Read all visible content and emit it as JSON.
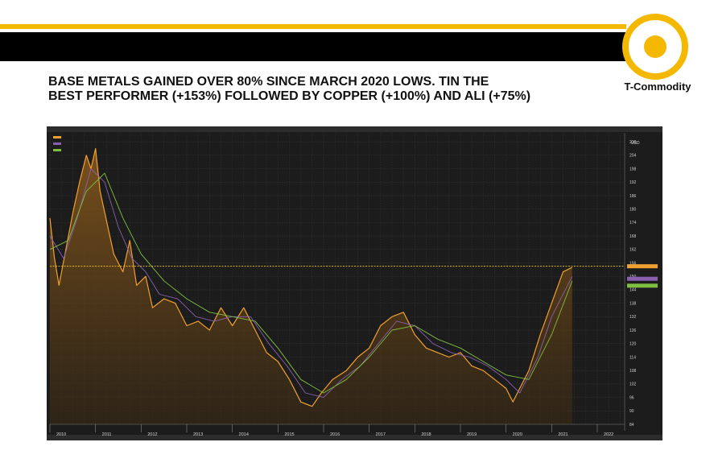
{
  "brand": {
    "name": "T-Commodity",
    "accent": "#f5b800",
    "bar_color": "#000000"
  },
  "slide": {
    "title_line1": "BASE METALS GAINED OVER 80% SINCE MARCH 2020 LOWS. TIN THE",
    "title_line2": "BEST PERFORMER (+153%) FOLLOWED BY COPPER (+100%) AND ALI (+75%)"
  },
  "chart_data": {
    "type": "area",
    "background": "#1c1c1c",
    "grid": true,
    "legend_position": "top-left",
    "currency_label": "USD",
    "x_ticks": [
      "2010",
      "2011",
      "2012",
      "2013",
      "2014",
      "2015",
      "2016",
      "2017",
      "2018",
      "2019",
      "2020",
      "2021",
      "2022"
    ],
    "x_range": [
      2010.0,
      2022.6
    ],
    "y_ticks": [
      84,
      90,
      96,
      102,
      108,
      114,
      120,
      126,
      132,
      138,
      144,
      150,
      156,
      162,
      168,
      174,
      180,
      186,
      192,
      198,
      204,
      210
    ],
    "ylim": [
      84,
      214
    ],
    "reference_level": 154.5,
    "series": [
      {
        "color": "#f0a030",
        "style": "area",
        "x": [
          2010.0,
          2010.1,
          2010.2,
          2010.35,
          2010.5,
          2010.65,
          2010.8,
          2010.9,
          2011.0,
          2011.1,
          2011.25,
          2011.4,
          2011.6,
          2011.75,
          2011.9,
          2012.1,
          2012.25,
          2012.5,
          2012.75,
          2013.0,
          2013.25,
          2013.5,
          2013.75,
          2014.0,
          2014.25,
          2014.5,
          2014.75,
          2015.0,
          2015.25,
          2015.5,
          2015.75,
          2015.95,
          2016.2,
          2016.5,
          2016.75,
          2017.0,
          2017.25,
          2017.5,
          2017.75,
          2018.0,
          2018.25,
          2018.5,
          2018.75,
          2019.0,
          2019.25,
          2019.5,
          2019.75,
          2020.0,
          2020.15,
          2020.25,
          2020.5,
          2020.75,
          2021.0,
          2021.25,
          2021.45
        ],
        "y": [
          176,
          158,
          146,
          162,
          178,
          192,
          204,
          198,
          207,
          188,
          174,
          160,
          152,
          166,
          146,
          150,
          136,
          140,
          138,
          128,
          130,
          126,
          136,
          128,
          136,
          126,
          116,
          112,
          104,
          94,
          92,
          98,
          104,
          108,
          114,
          118,
          128,
          132,
          134,
          124,
          118,
          116,
          114,
          116,
          110,
          108,
          104,
          100,
          94,
          98,
          108,
          124,
          138,
          152,
          154
        ]
      },
      {
        "color": "#8a5fb0",
        "style": "line",
        "x": [
          2010.0,
          2010.3,
          2010.6,
          2010.9,
          2011.2,
          2011.5,
          2011.8,
          2012.1,
          2012.4,
          2012.8,
          2013.2,
          2013.6,
          2014.0,
          2014.4,
          2014.8,
          2015.2,
          2015.6,
          2016.0,
          2016.4,
          2016.8,
          2017.2,
          2017.6,
          2018.0,
          2018.4,
          2018.8,
          2019.2,
          2019.6,
          2020.0,
          2020.3,
          2020.7,
          2021.0,
          2021.45
        ],
        "y": [
          168,
          158,
          176,
          198,
          192,
          172,
          158,
          152,
          142,
          140,
          132,
          130,
          132,
          132,
          120,
          110,
          98,
          96,
          104,
          110,
          120,
          130,
          128,
          120,
          116,
          114,
          110,
          104,
          98,
          114,
          132,
          150
        ]
      },
      {
        "color": "#7fbf3f",
        "style": "line",
        "x": [
          2010.0,
          2010.4,
          2010.8,
          2011.2,
          2011.6,
          2012.0,
          2012.5,
          2013.0,
          2013.5,
          2014.0,
          2014.5,
          2015.0,
          2015.5,
          2016.0,
          2016.5,
          2017.0,
          2017.5,
          2018.0,
          2018.5,
          2019.0,
          2019.5,
          2020.0,
          2020.5,
          2021.0,
          2021.45
        ],
        "y": [
          162,
          166,
          188,
          196,
          176,
          160,
          148,
          140,
          134,
          132,
          130,
          118,
          104,
          98,
          104,
          114,
          126,
          128,
          122,
          118,
          112,
          106,
          104,
          124,
          148
        ]
      }
    ]
  }
}
